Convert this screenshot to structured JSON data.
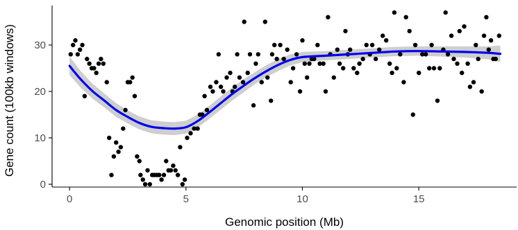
{
  "chart_data": {
    "type": "scatter",
    "xlabel": "Genomic position (Mb)",
    "ylabel": "Gene count (100kb windows)",
    "xlim": [
      -0.75,
      19.2
    ],
    "ylim": [
      -0.6,
      38.5
    ],
    "xticks": [
      0,
      5,
      10,
      15
    ],
    "yticks": [
      0,
      10,
      20,
      30
    ],
    "grid": false,
    "colors": {
      "points": "#000000",
      "smooth_line": "#0000ee",
      "confidence_band": "#bebebe"
    },
    "points": [
      [
        0.05,
        28
      ],
      [
        0.15,
        30
      ],
      [
        0.25,
        31
      ],
      [
        0.35,
        28
      ],
      [
        0.45,
        29
      ],
      [
        0.55,
        30
      ],
      [
        0.65,
        19
      ],
      [
        0.75,
        27
      ],
      [
        0.85,
        26
      ],
      [
        0.95,
        25
      ],
      [
        1.05,
        25
      ],
      [
        1.15,
        24
      ],
      [
        1.25,
        26
      ],
      [
        1.35,
        27
      ],
      [
        1.45,
        26
      ],
      [
        1.6,
        22
      ],
      [
        1.7,
        10
      ],
      [
        1.8,
        2
      ],
      [
        1.9,
        6
      ],
      [
        2.0,
        9
      ],
      [
        2.1,
        7
      ],
      [
        2.2,
        8
      ],
      [
        2.3,
        12
      ],
      [
        2.4,
        16
      ],
      [
        2.5,
        22
      ],
      [
        2.6,
        22
      ],
      [
        2.7,
        23
      ],
      [
        2.8,
        19
      ],
      [
        2.9,
        6
      ],
      [
        3.0,
        5
      ],
      [
        3.05,
        2
      ],
      [
        3.15,
        1
      ],
      [
        3.25,
        0
      ],
      [
        3.35,
        3
      ],
      [
        3.45,
        0
      ],
      [
        3.55,
        2
      ],
      [
        3.65,
        2
      ],
      [
        3.75,
        2
      ],
      [
        3.85,
        2
      ],
      [
        3.95,
        1
      ],
      [
        4.05,
        2
      ],
      [
        4.15,
        5
      ],
      [
        4.25,
        3
      ],
      [
        4.35,
        3
      ],
      [
        4.45,
        4
      ],
      [
        4.55,
        3
      ],
      [
        4.65,
        2
      ],
      [
        4.75,
        8
      ],
      [
        4.85,
        0
      ],
      [
        4.95,
        1
      ],
      [
        5.05,
        10
      ],
      [
        5.2,
        11
      ],
      [
        5.35,
        12
      ],
      [
        5.5,
        12
      ],
      [
        5.6,
        15
      ],
      [
        5.7,
        15
      ],
      [
        5.8,
        19
      ],
      [
        5.9,
        16
      ],
      [
        6.05,
        21
      ],
      [
        6.15,
        20
      ],
      [
        6.3,
        22
      ],
      [
        6.4,
        28
      ],
      [
        6.5,
        21
      ],
      [
        6.6,
        20
      ],
      [
        6.75,
        23
      ],
      [
        6.9,
        24
      ],
      [
        7.0,
        20
      ],
      [
        7.1,
        21
      ],
      [
        7.2,
        28
      ],
      [
        7.3,
        23
      ],
      [
        7.45,
        22
      ],
      [
        7.5,
        35
      ],
      [
        7.65,
        24
      ],
      [
        7.75,
        28
      ],
      [
        7.9,
        17
      ],
      [
        8.0,
        26
      ],
      [
        8.1,
        28
      ],
      [
        8.25,
        22
      ],
      [
        8.4,
        35
      ],
      [
        8.5,
        23
      ],
      [
        8.65,
        18
      ],
      [
        8.7,
        28
      ],
      [
        8.8,
        30
      ],
      [
        8.9,
        27
      ],
      [
        9.05,
        30
      ],
      [
        9.2,
        27
      ],
      [
        9.35,
        29
      ],
      [
        9.5,
        22
      ],
      [
        9.6,
        25
      ],
      [
        9.75,
        28
      ],
      [
        9.9,
        20
      ],
      [
        10.0,
        31
      ],
      [
        10.1,
        26
      ],
      [
        10.2,
        23
      ],
      [
        10.3,
        26
      ],
      [
        10.4,
        27
      ],
      [
        10.5,
        27
      ],
      [
        10.65,
        30
      ],
      [
        10.75,
        26
      ],
      [
        10.9,
        26
      ],
      [
        11.0,
        20
      ],
      [
        11.1,
        36
      ],
      [
        11.2,
        28
      ],
      [
        11.35,
        23
      ],
      [
        11.5,
        29
      ],
      [
        11.6,
        26
      ],
      [
        11.75,
        25
      ],
      [
        11.85,
        33
      ],
      [
        11.95,
        28
      ],
      [
        12.05,
        29
      ],
      [
        12.2,
        25
      ],
      [
        12.35,
        24
      ],
      [
        12.45,
        26
      ],
      [
        12.6,
        27
      ],
      [
        12.75,
        30
      ],
      [
        12.9,
        28
      ],
      [
        13.0,
        30
      ],
      [
        13.15,
        27
      ],
      [
        13.3,
        29
      ],
      [
        13.45,
        32
      ],
      [
        13.6,
        31
      ],
      [
        13.75,
        26
      ],
      [
        13.85,
        24
      ],
      [
        13.95,
        37
      ],
      [
        14.05,
        25
      ],
      [
        14.2,
        28
      ],
      [
        14.35,
        22
      ],
      [
        14.45,
        36
      ],
      [
        14.6,
        33
      ],
      [
        14.75,
        15
      ],
      [
        14.85,
        30
      ],
      [
        15.0,
        24
      ],
      [
        15.15,
        28
      ],
      [
        15.3,
        28
      ],
      [
        15.45,
        25
      ],
      [
        15.55,
        30
      ],
      [
        15.65,
        25
      ],
      [
        15.8,
        18
      ],
      [
        15.9,
        25
      ],
      [
        16.05,
        29
      ],
      [
        16.15,
        37
      ],
      [
        16.25,
        28
      ],
      [
        16.4,
        32
      ],
      [
        16.5,
        27
      ],
      [
        16.65,
        26
      ],
      [
        16.75,
        33
      ],
      [
        16.85,
        24
      ],
      [
        16.95,
        34
      ],
      [
        17.1,
        26
      ],
      [
        17.2,
        21
      ],
      [
        17.35,
        22
      ],
      [
        17.45,
        30
      ],
      [
        17.55,
        27
      ],
      [
        17.7,
        20
      ],
      [
        17.8,
        32
      ],
      [
        17.9,
        36
      ],
      [
        18.0,
        29
      ],
      [
        18.1,
        31
      ],
      [
        18.2,
        27
      ],
      [
        18.3,
        27
      ],
      [
        18.45,
        32
      ]
    ],
    "smooth": {
      "x": [
        0,
        0.5,
        1,
        1.5,
        2,
        2.5,
        3,
        3.5,
        4,
        4.5,
        5,
        5.5,
        6,
        6.5,
        7,
        7.5,
        8,
        8.5,
        9,
        9.5,
        10,
        11,
        12,
        13,
        14,
        15,
        16,
        17,
        18,
        18.5
      ],
      "y": [
        25.5,
        22.5,
        20.0,
        18.0,
        16.0,
        14.5,
        13.2,
        12.4,
        12.1,
        12.0,
        12.3,
        13.6,
        15.5,
        17.5,
        19.5,
        21.3,
        23.0,
        24.5,
        25.8,
        26.8,
        27.4,
        27.7,
        28.0,
        28.3,
        28.6,
        28.7,
        28.6,
        28.5,
        28.3,
        28.1
      ],
      "band": [
        2.0,
        1.8,
        1.6,
        1.5,
        1.5,
        1.4,
        1.4,
        1.4,
        1.4,
        1.4,
        1.4,
        1.4,
        1.4,
        1.4,
        1.4,
        1.4,
        1.3,
        1.3,
        1.3,
        1.2,
        1.1,
        1.0,
        1.0,
        1.0,
        1.0,
        1.0,
        1.1,
        1.2,
        1.4,
        1.8
      ]
    }
  }
}
